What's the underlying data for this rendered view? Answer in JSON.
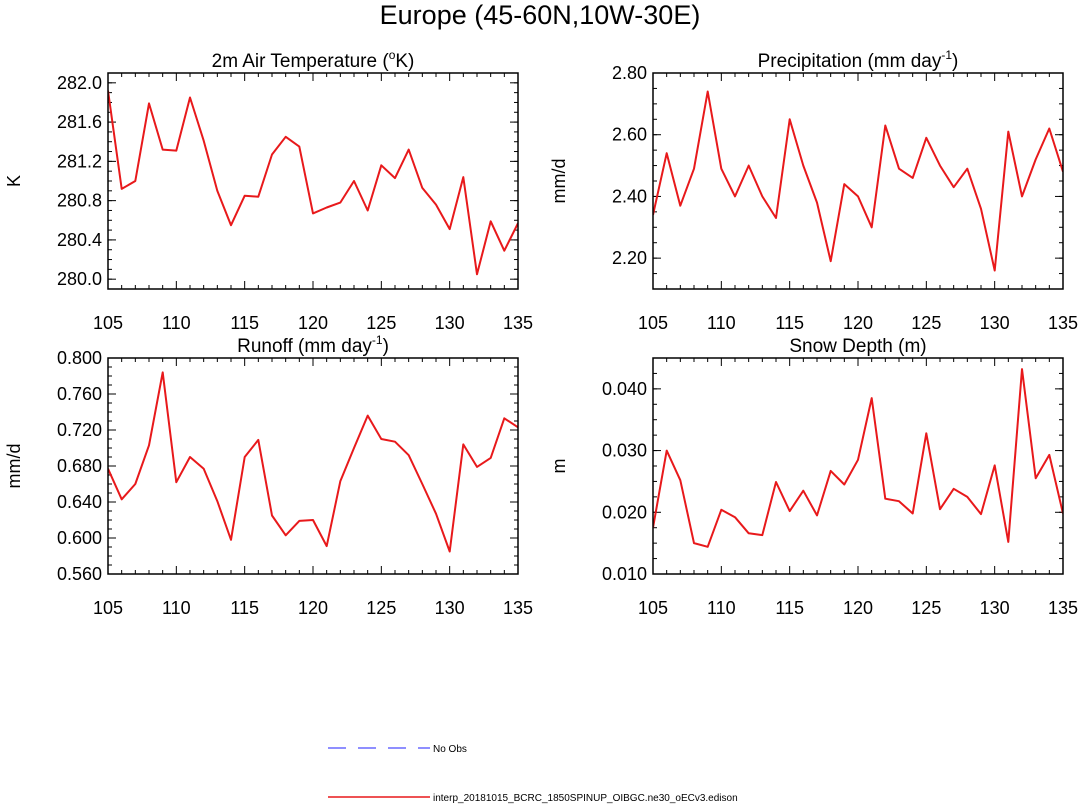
{
  "figure": {
    "title": "Europe (45-60N,10W-30E)"
  },
  "legend": {
    "entries": [
      {
        "label": "No Obs",
        "color": "#6a6aff",
        "dash": true
      },
      {
        "label": "interp_20181015_BCRC_1850SPINUP_OIBGC.ne30_oECv3.edison",
        "color": "#e8191b",
        "dash": false
      }
    ]
  },
  "chart_data": [
    {
      "type": "line",
      "title": "2m Air Temperature (",
      "title_sup": "o",
      "title_after": "K)",
      "ylabel": "K",
      "xlim": [
        105,
        135
      ],
      "ylim": [
        279.9,
        282.1
      ],
      "xticks": [
        105,
        110,
        115,
        120,
        125,
        130,
        135
      ],
      "yticks": [
        280.0,
        280.4,
        280.8,
        281.2,
        281.6,
        282.0
      ],
      "yticks_text": [
        "280.0",
        "280.4",
        "280.8",
        "281.2",
        "281.6",
        "282.0"
      ],
      "series": [
        {
          "color": "#e8191b",
          "x": [
            105,
            106,
            107,
            108,
            109,
            110,
            111,
            112,
            113,
            114,
            115,
            116,
            117,
            118,
            119,
            120,
            121,
            122,
            123,
            124,
            125,
            126,
            127,
            128,
            129,
            130,
            131,
            132,
            133,
            134,
            135
          ],
          "values": [
            281.92,
            280.92,
            281.0,
            281.79,
            281.32,
            281.31,
            281.85,
            281.41,
            280.9,
            280.55,
            280.85,
            280.84,
            281.27,
            281.45,
            281.35,
            280.67,
            280.73,
            280.78,
            281.0,
            280.7,
            281.16,
            281.03,
            281.32,
            280.93,
            280.76,
            280.51,
            281.04,
            280.05,
            280.59,
            280.29,
            280.57
          ]
        }
      ]
    },
    {
      "type": "line",
      "title": "Precipitation (mm day",
      "title_sup": "-1",
      "title_after": ")",
      "ylabel": "mm/d",
      "xlim": [
        105,
        135
      ],
      "ylim": [
        2.1,
        2.8
      ],
      "xticks": [
        105,
        110,
        115,
        120,
        125,
        130,
        135
      ],
      "yticks": [
        2.2,
        2.4,
        2.6,
        2.8
      ],
      "yticks_text": [
        "2.20",
        "2.40",
        "2.60",
        "2.80"
      ],
      "series": [
        {
          "color": "#e8191b",
          "x": [
            105,
            106,
            107,
            108,
            109,
            110,
            111,
            112,
            113,
            114,
            115,
            116,
            117,
            118,
            119,
            120,
            121,
            122,
            123,
            124,
            125,
            126,
            127,
            128,
            129,
            130,
            131,
            132,
            133,
            134,
            135
          ],
          "values": [
            2.34,
            2.54,
            2.37,
            2.49,
            2.74,
            2.49,
            2.4,
            2.5,
            2.4,
            2.33,
            2.65,
            2.5,
            2.38,
            2.19,
            2.44,
            2.4,
            2.3,
            2.63,
            2.49,
            2.46,
            2.59,
            2.5,
            2.43,
            2.49,
            2.36,
            2.16,
            2.61,
            2.4,
            2.52,
            2.62,
            2.48
          ]
        }
      ]
    },
    {
      "type": "line",
      "title": "Runoff (mm day",
      "title_sup": "-1",
      "title_after": ")",
      "ylabel": "mm/d",
      "xlim": [
        105,
        135
      ],
      "ylim": [
        0.56,
        0.8
      ],
      "xticks": [
        105,
        110,
        115,
        120,
        125,
        130,
        135
      ],
      "yticks": [
        0.56,
        0.6,
        0.64,
        0.68,
        0.72,
        0.76,
        0.8
      ],
      "yticks_text": [
        "0.560",
        "0.600",
        "0.640",
        "0.680",
        "0.720",
        "0.760",
        "0.800"
      ],
      "series": [
        {
          "color": "#e8191b",
          "x": [
            105,
            106,
            107,
            108,
            109,
            110,
            111,
            112,
            113,
            114,
            115,
            116,
            117,
            118,
            119,
            120,
            121,
            122,
            123,
            124,
            125,
            126,
            127,
            128,
            129,
            130,
            131,
            132,
            133,
            134,
            135
          ],
          "values": [
            0.677,
            0.643,
            0.66,
            0.703,
            0.784,
            0.662,
            0.69,
            0.677,
            0.641,
            0.598,
            0.69,
            0.709,
            0.625,
            0.603,
            0.619,
            0.62,
            0.591,
            0.663,
            0.7,
            0.736,
            0.71,
            0.707,
            0.692,
            0.66,
            0.627,
            0.585,
            0.704,
            0.679,
            0.689,
            0.733,
            0.723
          ]
        }
      ]
    },
    {
      "type": "line",
      "title": "Snow Depth (m)",
      "title_sup": "",
      "title_after": "",
      "ylabel": "m",
      "xlim": [
        105,
        135
      ],
      "ylim": [
        0.01,
        0.045
      ],
      "xticks": [
        105,
        110,
        115,
        120,
        125,
        130,
        135
      ],
      "yticks": [
        0.01,
        0.02,
        0.03,
        0.04
      ],
      "yticks_text": [
        "0.010",
        "0.020",
        "0.030",
        "0.040"
      ],
      "series": [
        {
          "color": "#e8191b",
          "x": [
            105,
            106,
            107,
            108,
            109,
            110,
            111,
            112,
            113,
            114,
            115,
            116,
            117,
            118,
            119,
            120,
            121,
            122,
            123,
            124,
            125,
            126,
            127,
            128,
            129,
            130,
            131,
            132,
            133,
            134,
            135
          ],
          "values": [
            0.0175,
            0.03,
            0.0252,
            0.015,
            0.0144,
            0.0204,
            0.0192,
            0.0166,
            0.0163,
            0.0249,
            0.0202,
            0.0235,
            0.0195,
            0.0267,
            0.0245,
            0.0285,
            0.0385,
            0.0222,
            0.0218,
            0.0198,
            0.0328,
            0.0205,
            0.0238,
            0.0225,
            0.0197,
            0.0276,
            0.0152,
            0.0432,
            0.0255,
            0.0293,
            0.0198
          ]
        }
      ]
    }
  ]
}
